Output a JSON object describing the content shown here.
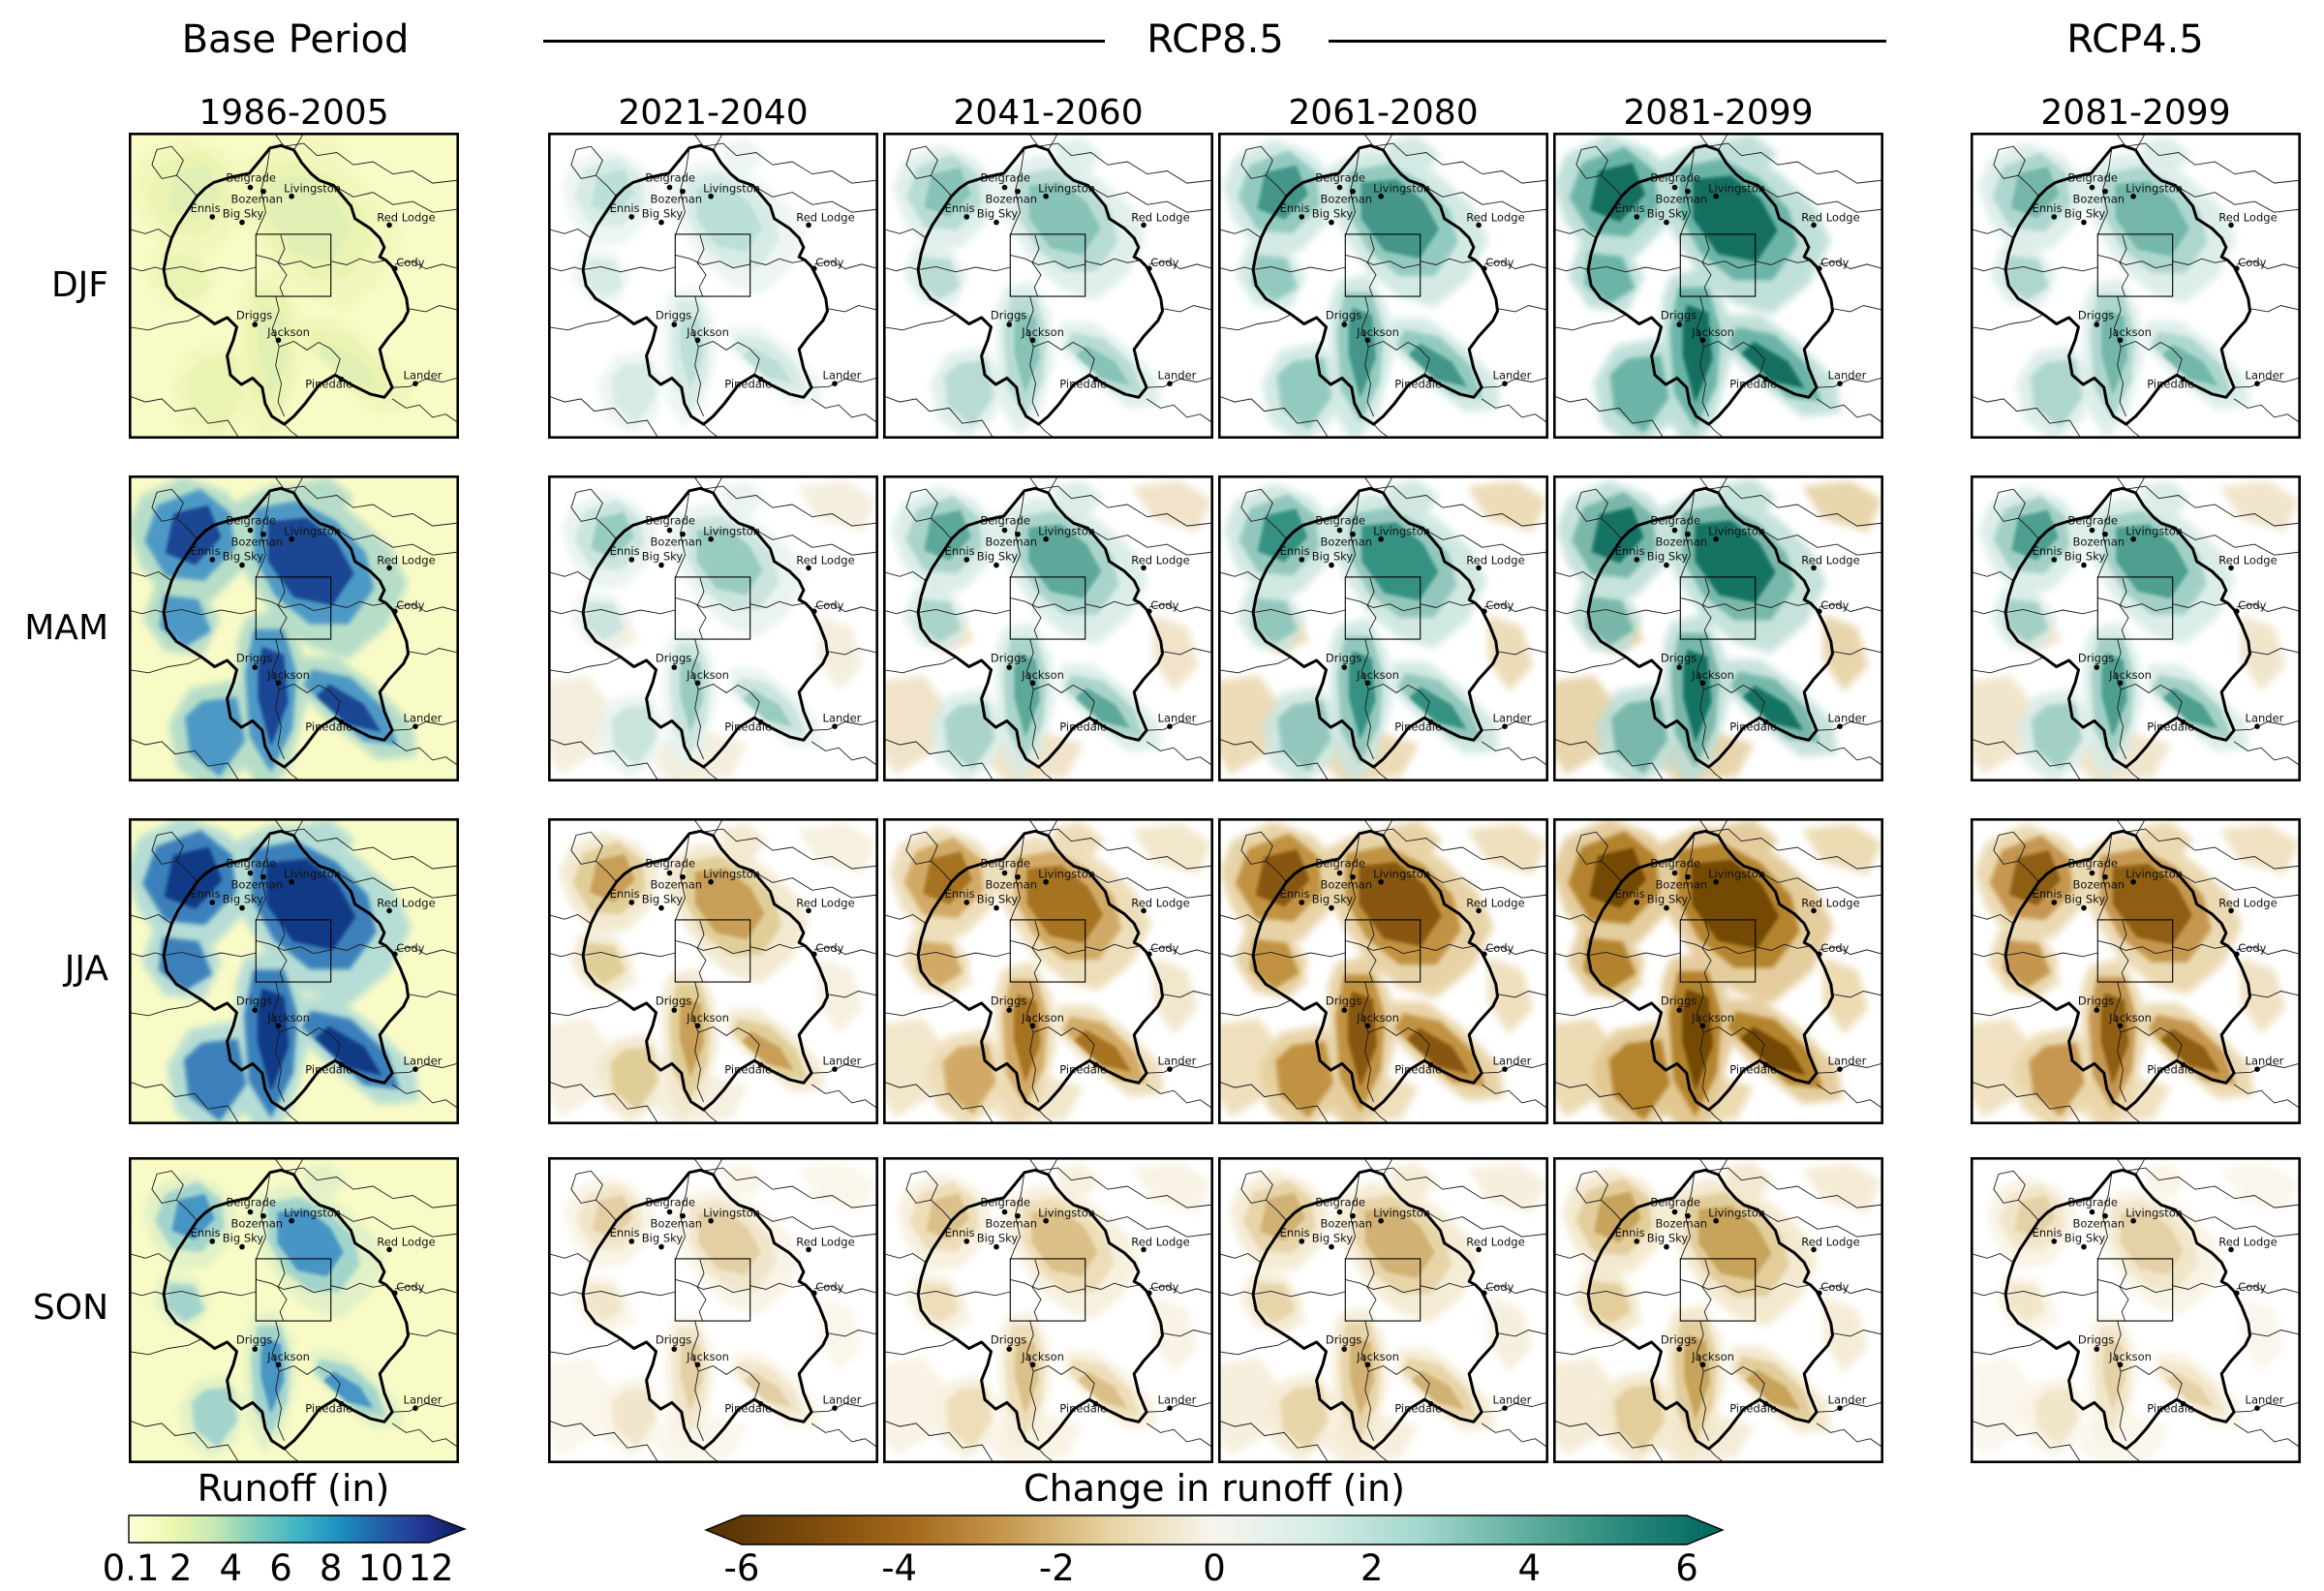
{
  "header": {
    "base_title": "Base Period",
    "rcp85_title": "RCP8.5",
    "rcp45_title": "RCP4.5"
  },
  "rows": [
    {
      "id": "DJF",
      "label": "DJF"
    },
    {
      "id": "MAM",
      "label": "MAM"
    },
    {
      "id": "JJA",
      "label": "JJA"
    },
    {
      "id": "SON",
      "label": "SON"
    }
  ],
  "columns": [
    {
      "id": "base",
      "group": "Base Period",
      "period": "1986-2005"
    },
    {
      "id": "rcp85-1",
      "group": "RCP8.5",
      "period": "2021-2040"
    },
    {
      "id": "rcp85-2",
      "group": "RCP8.5",
      "period": "2041-2060"
    },
    {
      "id": "rcp85-3",
      "group": "RCP8.5",
      "period": "2061-2080"
    },
    {
      "id": "rcp85-4",
      "group": "RCP8.5",
      "period": "2081-2099"
    },
    {
      "id": "rcp45",
      "group": "RCP4.5",
      "period": "2081-2099"
    }
  ],
  "map": {
    "cities": [
      {
        "name": "Belgrade",
        "dot": [
          0.368,
          0.179
        ],
        "label": [
          0.37,
          0.148
        ]
      },
      {
        "name": "Bozeman",
        "dot": [
          0.408,
          0.192
        ],
        "label": [
          0.388,
          0.218
        ]
      },
      {
        "name": "Livingston",
        "dot": [
          0.493,
          0.208
        ],
        "label": [
          0.556,
          0.183
        ]
      },
      {
        "name": "Ennis",
        "dot": [
          0.253,
          0.275
        ],
        "label": [
          0.232,
          0.249
        ]
      },
      {
        "name": "Big Sky",
        "dot": [
          0.343,
          0.293
        ],
        "label": [
          0.346,
          0.266
        ]
      },
      {
        "name": "Red Lodge",
        "dot": [
          0.789,
          0.302
        ],
        "label": [
          0.84,
          0.279
        ]
      },
      {
        "name": "Cody",
        "dot": [
          0.806,
          0.444
        ],
        "label": [
          0.853,
          0.425
        ]
      },
      {
        "name": "Driggs",
        "dot": [
          0.382,
          0.627
        ],
        "label": [
          0.38,
          0.598
        ]
      },
      {
        "name": "Jackson",
        "dot": [
          0.453,
          0.678
        ],
        "label": [
          0.484,
          0.653
        ]
      },
      {
        "name": "Pinedale",
        "dot": [
          0.644,
          0.806
        ],
        "label": [
          0.606,
          0.822
        ]
      },
      {
        "name": "Lander",
        "dot": [
          0.868,
          0.82
        ],
        "label": [
          0.89,
          0.794
        ]
      }
    ]
  },
  "panels": [
    {
      "season": "DJF",
      "group": "Base Period",
      "period": "1986-2005",
      "bg": "#f9fbc6",
      "low": "#f1f7bc",
      "mid": "#eaf3b1",
      "hi": "#e0f0b6",
      "lowland": null,
      "spread": 1.25
    },
    {
      "season": "DJF",
      "group": "RCP8.5",
      "period": "2021-2040",
      "bg": "#ffffff",
      "low": "#e9f4f1",
      "mid": "#d5eae5",
      "hi": "#badfd7",
      "lowland": null,
      "spread": 1.0
    },
    {
      "season": "DJF",
      "group": "RCP8.5",
      "period": "2041-2060",
      "bg": "#ffffff",
      "low": "#dbede9",
      "mid": "#b4dad2",
      "hi": "#83c1b5",
      "lowland": null,
      "spread": 1.08
    },
    {
      "season": "DJF",
      "group": "RCP8.5",
      "period": "2061-2080",
      "bg": "#ffffff",
      "low": "#cbe6e0",
      "mid": "#8dc7bc",
      "hi": "#3d9285",
      "lowland": null,
      "spread": 1.18
    },
    {
      "season": "DJF",
      "group": "RCP8.5",
      "period": "2081-2099",
      "bg": "#ffffff",
      "low": "#b5dbd3",
      "mid": "#63b0a2",
      "hi": "#0f6a5c",
      "lowland": null,
      "spread": 1.28
    },
    {
      "season": "DJF",
      "group": "RCP4.5",
      "period": "2081-2099",
      "bg": "#ffffff",
      "low": "#d8ebe7",
      "mid": "#a8d4cb",
      "hi": "#6fb5a8",
      "lowland": null,
      "spread": 1.12
    },
    {
      "season": "MAM",
      "group": "Base Period",
      "period": "1986-2005",
      "bg": "#f9fbc6",
      "low": "#abd8c9",
      "mid": "#4292c6",
      "hi": "#173f8f",
      "lowland": null,
      "spread": 1.3
    },
    {
      "season": "MAM",
      "group": "RCP8.5",
      "period": "2021-2040",
      "bg": "#ffffff",
      "low": "#e6f2ef",
      "mid": "#c8e3dd",
      "hi": "#95cabf",
      "lowland": "#f4ecd9",
      "spread": 1.0
    },
    {
      "season": "MAM",
      "group": "RCP8.5",
      "period": "2041-2060",
      "bg": "#ffffff",
      "low": "#d7ebe6",
      "mid": "#a5d2c8",
      "hi": "#58a597",
      "lowland": "#eedfc0",
      "spread": 1.1
    },
    {
      "season": "MAM",
      "group": "RCP8.5",
      "period": "2061-2080",
      "bg": "#ffffff",
      "low": "#cae5de",
      "mid": "#8dc4b9",
      "hi": "#2f8d7e",
      "lowland": "#e9d6ab",
      "spread": 1.16
    },
    {
      "season": "MAM",
      "group": "RCP8.5",
      "period": "2081-2099",
      "bg": "#ffffff",
      "low": "#bcddd5",
      "mid": "#71b3a5",
      "hi": "#0e6e5f",
      "lowland": "#e4ce9d",
      "spread": 1.22
    },
    {
      "season": "MAM",
      "group": "RCP4.5",
      "period": "2081-2099",
      "bg": "#ffffff",
      "low": "#d5eae5",
      "mid": "#9ecdc3",
      "hi": "#479b8c",
      "lowland": "#efe1c4",
      "spread": 1.1
    },
    {
      "season": "JJA",
      "group": "Base Period",
      "period": "1986-2005",
      "bg": "#f9fbc6",
      "low": "#aad8d8",
      "mid": "#2e77b8",
      "hi": "#113681",
      "lowland": null,
      "spread": 1.35
    },
    {
      "season": "JJA",
      "group": "RCP8.5",
      "period": "2021-2040",
      "bg": "#ffffff",
      "low": "#f1e6c9",
      "mid": "#dfcc93",
      "hi": "#c89c53",
      "lowland": "#f5eedb",
      "spread": 1.05
    },
    {
      "season": "JJA",
      "group": "RCP8.5",
      "period": "2041-2060",
      "bg": "#ffffff",
      "low": "#ebd9af",
      "mid": "#d0a55f",
      "hi": "#a3701e",
      "lowland": "#f0e3c3",
      "spread": 1.15
    },
    {
      "season": "JJA",
      "group": "RCP8.5",
      "period": "2061-2080",
      "bg": "#ffffff",
      "low": "#e4cc98",
      "mid": "#bc8c38",
      "hi": "#835307",
      "lowland": "#ecdab2",
      "spread": 1.25
    },
    {
      "season": "JJA",
      "group": "RCP8.5",
      "period": "2081-2099",
      "bg": "#ffffff",
      "low": "#e0c48c",
      "mid": "#ae7b24",
      "hi": "#6e4403",
      "lowland": "#e9d5a6",
      "spread": 1.32
    },
    {
      "season": "JJA",
      "group": "RCP4.5",
      "period": "2081-2099",
      "bg": "#ffffff",
      "low": "#e8d3a4",
      "mid": "#c19046",
      "hi": "#8a5a10",
      "lowland": "#eeddb8",
      "spread": 1.2
    },
    {
      "season": "SON",
      "group": "Base Period",
      "period": "1986-2005",
      "bg": "#f9fbc6",
      "low": "#def0c6",
      "mid": "#9cd1cd",
      "hi": "#3f90c5",
      "lowland": null,
      "spread": 1.0
    },
    {
      "season": "SON",
      "group": "RCP8.5",
      "period": "2021-2040",
      "bg": "#ffffff",
      "low": "#f8f2e2",
      "mid": "#f1e5c9",
      "hi": "#e3cea2",
      "lowland": "#faf5e9",
      "spread": 0.95
    },
    {
      "season": "SON",
      "group": "RCP8.5",
      "period": "2041-2060",
      "bg": "#ffffff",
      "low": "#f6eed9",
      "mid": "#eddcb5",
      "hi": "#dabe86",
      "lowland": "#f8f1e1",
      "spread": 1.0
    },
    {
      "season": "SON",
      "group": "RCP8.5",
      "period": "2061-2080",
      "bg": "#ffffff",
      "low": "#f4e9cf",
      "mid": "#e6d3a5",
      "hi": "#d0af6f",
      "lowland": "#f6edd9",
      "spread": 1.05
    },
    {
      "season": "SON",
      "group": "RCP8.5",
      "period": "2081-2099",
      "bg": "#ffffff",
      "low": "#f2e6c8",
      "mid": "#e1cb96",
      "hi": "#c5a057",
      "lowland": "#f4e9d1",
      "spread": 1.1
    },
    {
      "season": "SON",
      "group": "RCP4.5",
      "period": "2081-2099",
      "bg": "#ffffff",
      "low": "#f8f2e1",
      "mid": "#f2e5c8",
      "hi": "#e4d0a5",
      "lowland": "#faf5ea",
      "spread": 0.95
    }
  ],
  "colorbar_runoff": {
    "title": "Runoff (in)",
    "tick_labels": [
      "0.1",
      "2",
      "4",
      "6",
      "8",
      "10",
      "12"
    ],
    "extend": "max",
    "colors": [
      "#ffffd9",
      "#edf8b1",
      "#c7e9b4",
      "#7fcdbb",
      "#41b6c4",
      "#1d91c0",
      "#225ea8",
      "#253494",
      "#081d58"
    ]
  },
  "colorbar_change": {
    "title": "Change in runoff (in)",
    "tick_labels": [
      "-6",
      "-4",
      "-2",
      "0",
      "2",
      "4",
      "6"
    ],
    "extend": "both",
    "colors": [
      "#543005",
      "#7a4a0c",
      "#a4681a",
      "#c89b52",
      "#e8d5a5",
      "#f7f5ee",
      "#d6ece7",
      "#a4d8cd",
      "#64b1a2",
      "#2a8a7b",
      "#01665e"
    ]
  },
  "chart_data": {
    "type": "heatmap",
    "variant": "small-multiple seasonal raster maps, Greater Yellowstone region",
    "rows": [
      "DJF",
      "MAM",
      "JJA",
      "SON"
    ],
    "columns": [
      "Base Period 1986-2005",
      "RCP8.5 2021-2040",
      "RCP8.5 2041-2060",
      "RCP8.5 2061-2080",
      "RCP8.5 2081-2099",
      "RCP4.5 2081-2099"
    ],
    "colorbars": [
      {
        "title": "Runoff (in)",
        "ticks": [
          0.1,
          2,
          4,
          6,
          8,
          10,
          12
        ],
        "range": [
          0.1,
          12
        ],
        "colormap": "YlGnBu",
        "applies_to": "Base Period column",
        "extend": "max"
      },
      {
        "title": "Change in runoff (in)",
        "ticks": [
          -6,
          -4,
          -2,
          0,
          2,
          4,
          6
        ],
        "range": [
          -6,
          6
        ],
        "colormap": "BrBG",
        "applies_to": "RCP8.5 and RCP4.5 columns",
        "extend": "both"
      }
    ],
    "panel_signal": [
      {
        "season": "DJF",
        "by_column": [
          "low runoff ~0.1-2 in, pale uniform",
          "increase 0 to +1",
          "increase +1 to +2",
          "increase +2 to +4",
          "increase +3 to +6 widespread",
          "increase +1 to +3"
        ]
      },
      {
        "season": "MAM",
        "by_column": [
          "high runoff 2-12 in over mountains",
          "increase 0 to +2 in mountains",
          "increase +1 to +3, slight decrease in lowlands",
          "increase +2 to +4 mountains, -1 lowlands",
          "increase +3 to +6 mountains, -1 to -2 lowlands",
          "increase +1 to +3, slight lowland decrease"
        ]
      },
      {
        "season": "JJA",
        "by_column": [
          "highest runoff 4-12+ in over mountains",
          "decrease 0 to -2",
          "decrease -2 to -4",
          "decrease -3 to -5 widespread",
          "decrease -4 to -6 widespread",
          "decrease -2 to -4"
        ]
      },
      {
        "season": "SON",
        "by_column": [
          "moderate runoff 0.1-6 in",
          "near zero change",
          "slight decrease 0 to -1",
          "decrease 0 to -2",
          "decrease -1 to -2",
          "near zero change"
        ]
      }
    ],
    "map_labels": [
      "Belgrade",
      "Bozeman",
      "Livingston",
      "Ennis",
      "Big Sky",
      "Red Lodge",
      "Cody",
      "Driggs",
      "Jackson",
      "Pinedale",
      "Lander"
    ]
  }
}
